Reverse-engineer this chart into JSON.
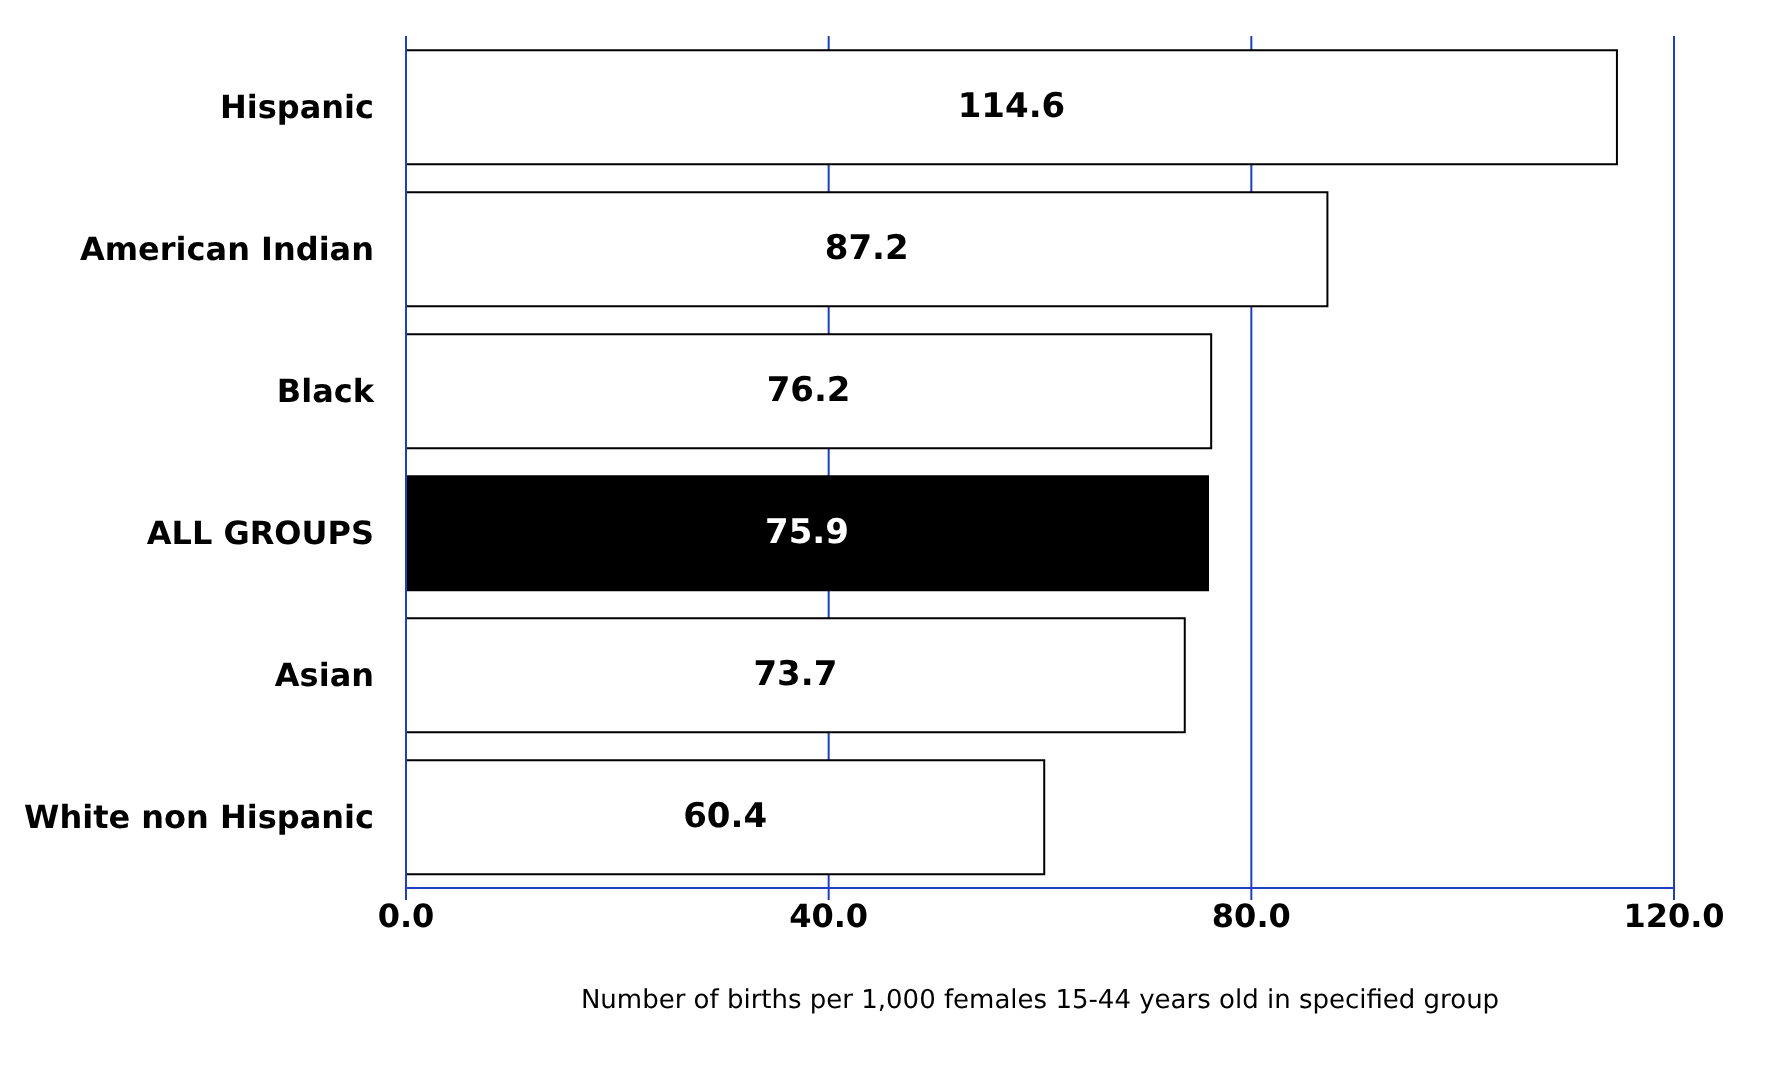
{
  "chart_data": {
    "type": "bar",
    "orientation": "horizontal",
    "xlabel": "Number of births per 1,000 females  15-44 years old in specified group",
    "categories": [
      "Hispanic",
      "American Indian",
      "Black",
      "ALL GROUPS",
      "Asian",
      "White non Hispanic"
    ],
    "values": [
      114.6,
      87.2,
      76.2,
      75.9,
      73.7,
      60.4
    ],
    "colors": [
      "#ffffff",
      "#ffffff",
      "#ffffff",
      "#000000",
      "#ffffff",
      "#ffffff"
    ],
    "xlim": [
      0,
      120
    ],
    "xticks": [
      {
        "value": 0,
        "label": "0.0"
      },
      {
        "value": 40,
        "label": "40.0"
      },
      {
        "value": 80,
        "label": "80.0"
      },
      {
        "value": 120,
        "label": "120.0"
      }
    ],
    "grid": "x",
    "data_labels": true
  }
}
